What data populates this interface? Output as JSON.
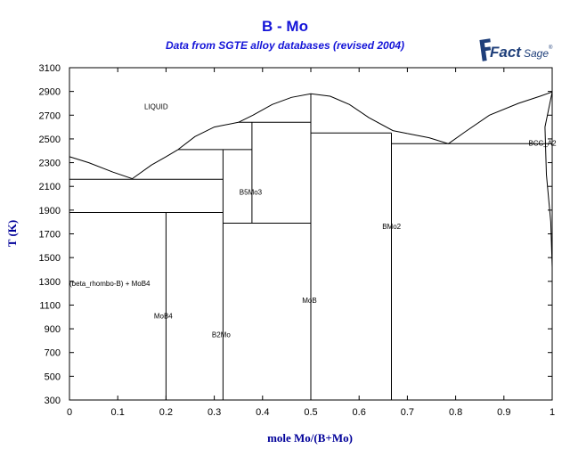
{
  "header": {
    "title": "B - Mo",
    "subtitle": "Data from SGTE alloy databases (revised 2004)",
    "logo_text_1": "Fact",
    "logo_text_2": "Sage",
    "logo_reg": "®"
  },
  "colors": {
    "title": "#1414d8",
    "axis_label": "#000099",
    "line": "#000000",
    "logo": "#1f3f7a"
  },
  "chart_data": {
    "type": "line",
    "title": "B - Mo",
    "xlabel": "mole Mo/(B+Mo)",
    "ylabel": "T (K)",
    "xlim": [
      0,
      1
    ],
    "ylim": [
      300,
      3100
    ],
    "xticks": [
      "0",
      "0.1",
      "0.2",
      "0.3",
      "0.4",
      "0.5",
      "0.6",
      "0.7",
      "0.8",
      "0.9",
      "1"
    ],
    "yticks": [
      "300",
      "500",
      "700",
      "900",
      "1100",
      "1300",
      "1500",
      "1700",
      "1900",
      "2100",
      "2300",
      "2500",
      "2700",
      "2900",
      "3100"
    ],
    "grid": false,
    "series": [
      {
        "values": [
          [
            0,
            2350
          ],
          [
            0.04,
            2300
          ],
          [
            0.09,
            2220
          ],
          [
            0.13,
            2165
          ],
          [
            0.17,
            2280
          ],
          [
            0.2,
            2350
          ],
          [
            0.225,
            2410
          ]
        ]
      },
      {
        "values": [
          [
            0.225,
            2410
          ],
          [
            0.26,
            2520
          ],
          [
            0.3,
            2600
          ],
          [
            0.35,
            2640
          ]
        ]
      },
      {
        "values": [
          [
            0.35,
            2640
          ],
          [
            0.38,
            2700
          ],
          [
            0.42,
            2790
          ],
          [
            0.46,
            2850
          ],
          [
            0.5,
            2880
          ],
          [
            0.54,
            2860
          ],
          [
            0.58,
            2790
          ],
          [
            0.62,
            2680
          ],
          [
            0.67,
            2570
          ],
          [
            0.7,
            2545
          ]
        ]
      },
      {
        "values": [
          [
            0.7,
            2545
          ],
          [
            0.745,
            2510
          ],
          [
            0.785,
            2460
          ],
          [
            0.82,
            2560
          ],
          [
            0.87,
            2700
          ],
          [
            0.93,
            2800
          ],
          [
            0.975,
            2860
          ],
          [
            1,
            2896
          ]
        ]
      },
      {
        "values": [
          [
            0,
            2160
          ],
          [
            0.318,
            2160
          ]
        ]
      },
      {
        "values": [
          [
            0,
            1880
          ],
          [
            0.318,
            1880
          ]
        ]
      },
      {
        "values": [
          [
            0.2,
            1880
          ],
          [
            0.2,
            300
          ]
        ]
      },
      {
        "values": [
          [
            0.318,
            2410
          ],
          [
            0.318,
            300
          ]
        ]
      },
      {
        "values": [
          [
            0.225,
            2410
          ],
          [
            0.378,
            2410
          ]
        ]
      },
      {
        "values": [
          [
            0.378,
            2640
          ],
          [
            0.378,
            1790
          ]
        ]
      },
      {
        "values": [
          [
            0.318,
            1790
          ],
          [
            0.5,
            1790
          ]
        ]
      },
      {
        "values": [
          [
            0.35,
            2640
          ],
          [
            0.5,
            2640
          ]
        ]
      },
      {
        "values": [
          [
            0.5,
            2880
          ],
          [
            0.5,
            300
          ]
        ]
      },
      {
        "values": [
          [
            0.5,
            2550
          ],
          [
            0.667,
            2550
          ]
        ]
      },
      {
        "values": [
          [
            0.667,
            2550
          ],
          [
            0.667,
            300
          ]
        ]
      },
      {
        "values": [
          [
            0.667,
            2460
          ],
          [
            1,
            2460
          ]
        ]
      },
      {
        "values": [
          [
            1,
            2896
          ],
          [
            0.985,
            2600
          ],
          [
            0.988,
            2200
          ],
          [
            0.997,
            1800
          ],
          [
            1,
            1420
          ]
        ]
      }
    ],
    "annotations": [
      {
        "text": "LIQUID",
        "x": 0.155,
        "y": 2750
      },
      {
        "text": "B5Mo3",
        "x": 0.352,
        "y": 2030
      },
      {
        "text": "BMo2",
        "x": 0.648,
        "y": 1740
      },
      {
        "text": "BCC_A2",
        "x": 0.951,
        "y": 2445
      },
      {
        "text": "(beta_rhombo-B) + MoB4",
        "x": 0,
        "y": 1260
      },
      {
        "text": "MoB4",
        "x": 0.175,
        "y": 985
      },
      {
        "text": "MoB",
        "x": 0.482,
        "y": 1120
      },
      {
        "text": "B2Mo",
        "x": 0.295,
        "y": 830
      }
    ]
  }
}
